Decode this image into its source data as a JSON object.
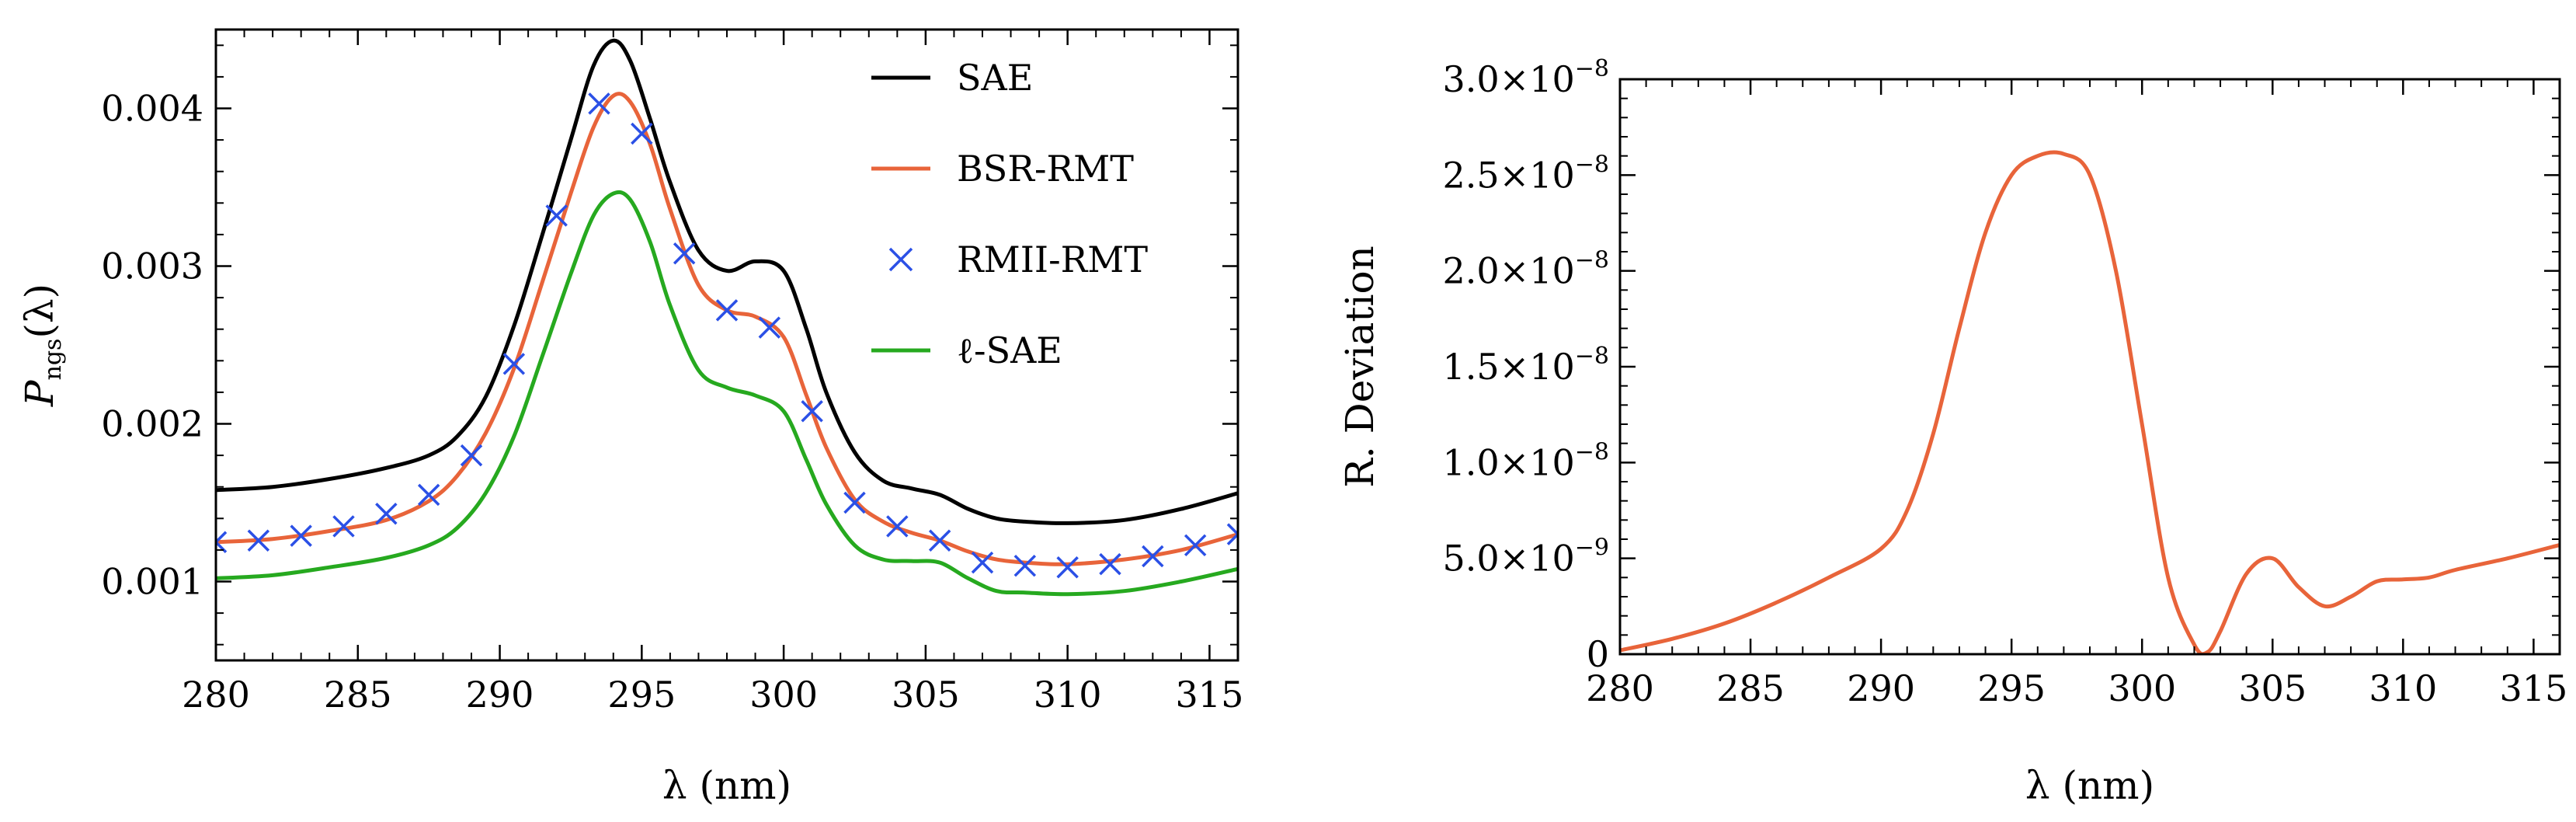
{
  "chart_data": [
    {
      "type": "line",
      "panel": "left",
      "xlabel": "λ (nm)",
      "ylabel": "P_ngs(λ)",
      "ylabel_main": "P",
      "ylabel_sub": "ngs",
      "ylabel_suffix": "(λ)",
      "xlim": [
        280,
        316
      ],
      "ylim": [
        0.0005,
        0.0045
      ],
      "xticks": [
        280,
        285,
        290,
        295,
        300,
        305,
        310,
        315
      ],
      "xtick_labels": [
        "280",
        "285",
        "290",
        "295",
        "300",
        "305",
        "310",
        "315"
      ],
      "yticks": [
        0.001,
        0.002,
        0.003,
        0.004
      ],
      "ytick_labels": [
        "0.001",
        "0.002",
        "0.003",
        "0.004"
      ],
      "legend_position": "top-right",
      "series": [
        {
          "name": "SAE",
          "style": "line",
          "color": "#000000",
          "x": [
            280,
            282,
            284,
            286,
            287.5,
            288.5,
            289.5,
            290.5,
            291.5,
            292.5,
            293.3,
            294.0,
            294.6,
            295.3,
            296.0,
            297.0,
            298.0,
            299.0,
            300.0,
            300.8,
            301.5,
            302.5,
            303.5,
            304.5,
            305.5,
            306.5,
            307.5,
            308.5,
            310.0,
            312.0,
            314.0,
            316.0
          ],
          "y": [
            0.00158,
            0.0016,
            0.00165,
            0.00172,
            0.0018,
            0.00192,
            0.00217,
            0.00262,
            0.0032,
            0.0038,
            0.00427,
            0.00443,
            0.0043,
            0.00393,
            0.00353,
            0.0031,
            0.00297,
            0.00303,
            0.00297,
            0.0026,
            0.0022,
            0.00182,
            0.00164,
            0.00159,
            0.00155,
            0.00146,
            0.0014,
            0.00138,
            0.00137,
            0.00139,
            0.00146,
            0.00156
          ]
        },
        {
          "name": "BSR-RMT",
          "style": "line",
          "color": "#e8643a",
          "x": [
            280,
            282,
            284,
            286,
            287.5,
            288.5,
            289.5,
            290.5,
            291.5,
            292.5,
            293.3,
            294.0,
            294.6,
            295.3,
            296.0,
            297.0,
            298.0,
            299.0,
            300.0,
            300.8,
            301.5,
            302.5,
            303.5,
            304.5,
            305.5,
            306.5,
            307.5,
            308.5,
            310.0,
            312.0,
            314.0,
            316.0
          ],
          "y": [
            0.00125,
            0.00127,
            0.00132,
            0.00139,
            0.00151,
            0.00167,
            0.00194,
            0.00235,
            0.0029,
            0.00346,
            0.00388,
            0.00408,
            0.00404,
            0.00377,
            0.00336,
            0.00288,
            0.00272,
            0.00268,
            0.00255,
            0.00218,
            0.00185,
            0.00152,
            0.00138,
            0.00131,
            0.00126,
            0.00119,
            0.00114,
            0.00112,
            0.00111,
            0.00114,
            0.0012,
            0.0013
          ]
        },
        {
          "name": "RMII-RMT",
          "style": "marker-x",
          "color": "#2b50e6",
          "x": [
            280,
            281.5,
            283,
            284.5,
            286,
            287.5,
            289,
            290.5,
            292,
            293.5,
            295,
            296.5,
            298,
            299.5,
            301,
            302.5,
            304,
            305.5,
            307,
            308.5,
            310,
            311.5,
            313,
            314.5,
            316
          ],
          "y": [
            0.00125,
            0.00126,
            0.00129,
            0.00135,
            0.00143,
            0.00155,
            0.0018,
            0.00238,
            0.00332,
            0.00403,
            0.00384,
            0.00308,
            0.00272,
            0.00261,
            0.00208,
            0.0015,
            0.00135,
            0.00126,
            0.00112,
            0.0011,
            0.00109,
            0.00111,
            0.00116,
            0.00123,
            0.0013
          ]
        },
        {
          "name": "ℓ-SAE",
          "style": "line",
          "color": "#26a91f",
          "x": [
            280,
            282,
            284,
            286,
            287.5,
            288.5,
            289.5,
            290.5,
            291.5,
            292.5,
            293.3,
            294.0,
            294.6,
            295.3,
            296.0,
            297.0,
            298.0,
            299.0,
            300.0,
            300.8,
            301.5,
            302.5,
            303.5,
            304.5,
            305.5,
            306.5,
            307.5,
            308.5,
            310.0,
            312.0,
            314.0,
            316.0
          ],
          "y": [
            0.00102,
            0.00104,
            0.00109,
            0.00115,
            0.00123,
            0.00134,
            0.00156,
            0.00192,
            0.00243,
            0.00295,
            0.00332,
            0.00346,
            0.00342,
            0.00315,
            0.00275,
            0.00234,
            0.00223,
            0.00218,
            0.00208,
            0.00177,
            0.00149,
            0.00123,
            0.00114,
            0.00113,
            0.00112,
            0.00102,
            0.00094,
            0.00093,
            0.00092,
            0.00094,
            0.001,
            0.00108
          ]
        }
      ]
    },
    {
      "type": "line",
      "panel": "right",
      "xlabel": "λ (nm)",
      "ylabel": "R. Deviation",
      "xlim": [
        280,
        316
      ],
      "ylim": [
        0,
        3e-08
      ],
      "xticks": [
        280,
        285,
        290,
        295,
        300,
        305,
        310,
        315
      ],
      "xtick_labels": [
        "280",
        "285",
        "290",
        "295",
        "300",
        "305",
        "310",
        "315"
      ],
      "yticks": [
        0,
        5e-09,
        1e-08,
        1.5e-08,
        2e-08,
        2.5e-08,
        3e-08
      ],
      "ytick_labels": [
        {
          "mantissa": "0",
          "exponent": ""
        },
        {
          "mantissa": "5.0×10",
          "exponent": "−9"
        },
        {
          "mantissa": "1.0×10",
          "exponent": "−8"
        },
        {
          "mantissa": "1.5×10",
          "exponent": "−8"
        },
        {
          "mantissa": "2.0×10",
          "exponent": "−8"
        },
        {
          "mantissa": "2.5×10",
          "exponent": "−8"
        },
        {
          "mantissa": "3.0×10",
          "exponent": "−8"
        }
      ],
      "series": [
        {
          "name": "R. Deviation",
          "color": "#e8643a",
          "x": [
            280,
            282,
            284,
            286,
            288,
            290,
            291,
            292,
            293,
            294,
            295,
            296,
            297,
            298,
            299,
            300,
            301,
            302,
            302.5,
            303,
            304,
            305,
            306,
            307,
            308,
            309,
            310,
            311,
            312,
            314,
            316
          ],
          "y": [
            2e-10,
            8e-10,
            1.6e-09,
            2.7e-09,
            4e-09,
            5.5e-09,
            7.5e-09,
            1.15e-08,
            1.7e-08,
            2.2e-08,
            2.5e-08,
            2.6e-08,
            2.61e-08,
            2.5e-08,
            2e-08,
            1.2e-08,
            4e-09,
            5e-10,
            1e-10,
            1.2e-09,
            4.2e-09,
            5e-09,
            3.5e-09,
            2.5e-09,
            3e-09,
            3.8e-09,
            3.9e-09,
            4e-09,
            4.4e-09,
            5e-09,
            5.7e-09
          ]
        }
      ]
    }
  ]
}
